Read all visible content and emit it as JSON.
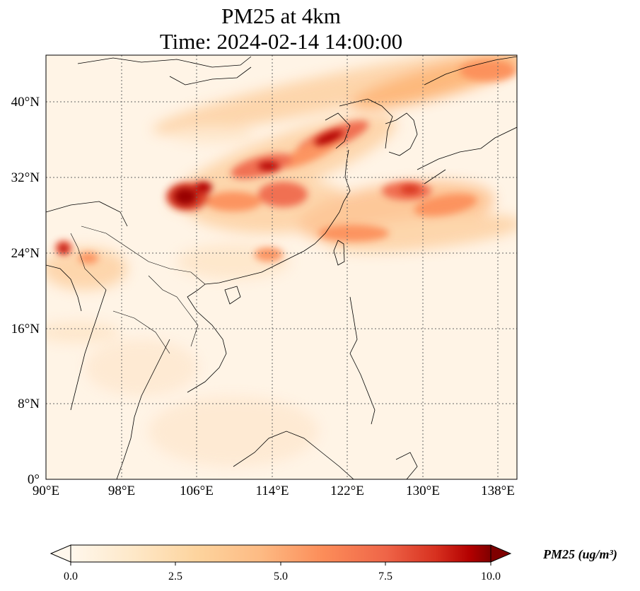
{
  "title": {
    "line1": "PM25 at 4km",
    "line2": "Time: 2024-02-14 14:00:00"
  },
  "map": {
    "lon_range": [
      90,
      140
    ],
    "lat_range": [
      0,
      45
    ],
    "x_ticks": [
      {
        "value": 90,
        "label": "90°E"
      },
      {
        "value": 98,
        "label": "98°E"
      },
      {
        "value": 106,
        "label": "106°E"
      },
      {
        "value": 114,
        "label": "114°E"
      },
      {
        "value": 122,
        "label": "122°E"
      },
      {
        "value": 130,
        "label": "130°E"
      },
      {
        "value": 138,
        "label": "138°E"
      }
    ],
    "y_ticks": [
      {
        "value": 0,
        "label": "0°"
      },
      {
        "value": 8,
        "label": "8°N"
      },
      {
        "value": 16,
        "label": "16°N"
      },
      {
        "value": 24,
        "label": "24°N"
      },
      {
        "value": 32,
        "label": "32°N"
      },
      {
        "value": 40,
        "label": "40°N"
      }
    ],
    "gridlines": true,
    "colormap": "OrRd",
    "colors": {
      "background": "#fff4e6",
      "low": "#fee5c8",
      "mid": "#fc8d59",
      "high": "#d7301f",
      "max": "#7f0000",
      "coast": "#000000",
      "grid": "#666666"
    }
  },
  "colorbar": {
    "min": 0,
    "max": 10,
    "ticks": [
      "0.0",
      "2.5",
      "5.0",
      "7.5",
      "10.0"
    ],
    "label": "PM25 (ug/m³)",
    "extend": "both"
  }
}
